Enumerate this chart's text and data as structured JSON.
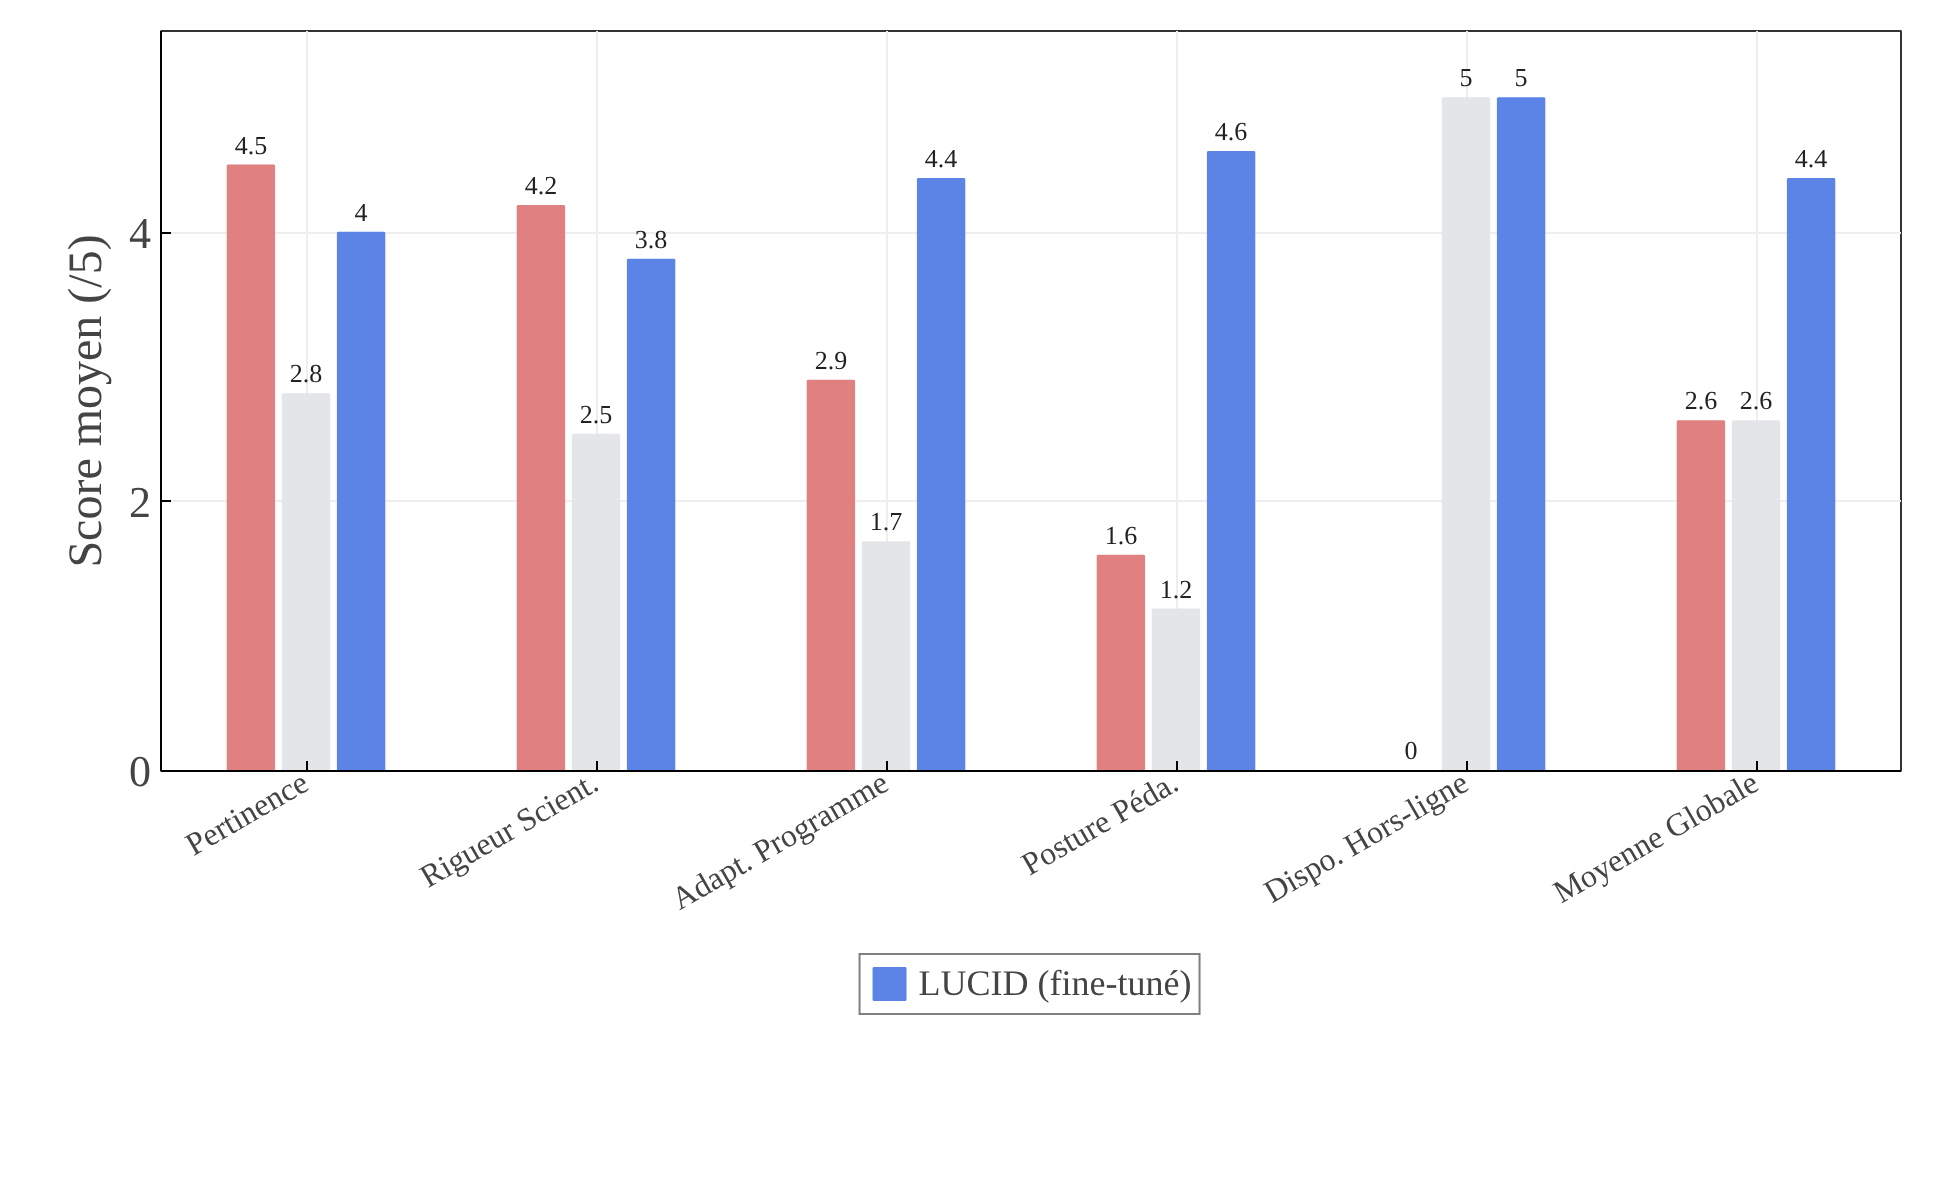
{
  "chart_data": {
    "type": "bar",
    "ylabel": "Score moyen (/5)",
    "categories": [
      "Pertinence",
      "Rigueur Scient.",
      "Adapt. Programme",
      "Posture Péda.",
      "Dispo. Hors-ligne",
      "Moyenne Globale"
    ],
    "series": [
      {
        "color": "#e08080",
        "values": [
          4.5,
          4.2,
          2.9,
          1.6,
          0,
          2.6
        ]
      },
      {
        "color": "#e4e5e9",
        "values": [
          2.8,
          2.5,
          1.7,
          1.2,
          5,
          2.6
        ]
      },
      {
        "name": "LUCID (fine-tuné)",
        "color": "#5b84e6",
        "values": [
          4,
          3.8,
          4.4,
          4.6,
          5,
          4.4
        ]
      }
    ],
    "ylim": [
      0,
      5.5
    ],
    "yticks": [
      0,
      2,
      4
    ],
    "grid": true,
    "data_labels": true,
    "legend": "bottom"
  }
}
